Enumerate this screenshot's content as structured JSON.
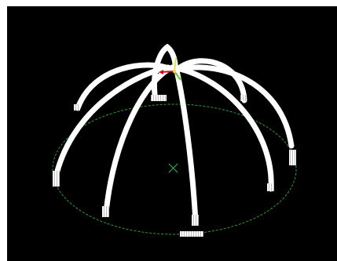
{
  "viewport": {
    "background": "#000000",
    "frame_background": "#ffffff"
  },
  "scene": {
    "object": "arch-dome-wireframe",
    "arch_count": 8,
    "colors": {
      "arch": "#ffffff",
      "base_circle": "#2e9e2e",
      "center_marker": "#2fa84f",
      "axis_x": "#d01010",
      "axis_y": "#5bd11c",
      "axis_z": "#e8e04a"
    },
    "icons": [
      "center-cross-icon",
      "gizmo-axes-icon"
    ]
  }
}
